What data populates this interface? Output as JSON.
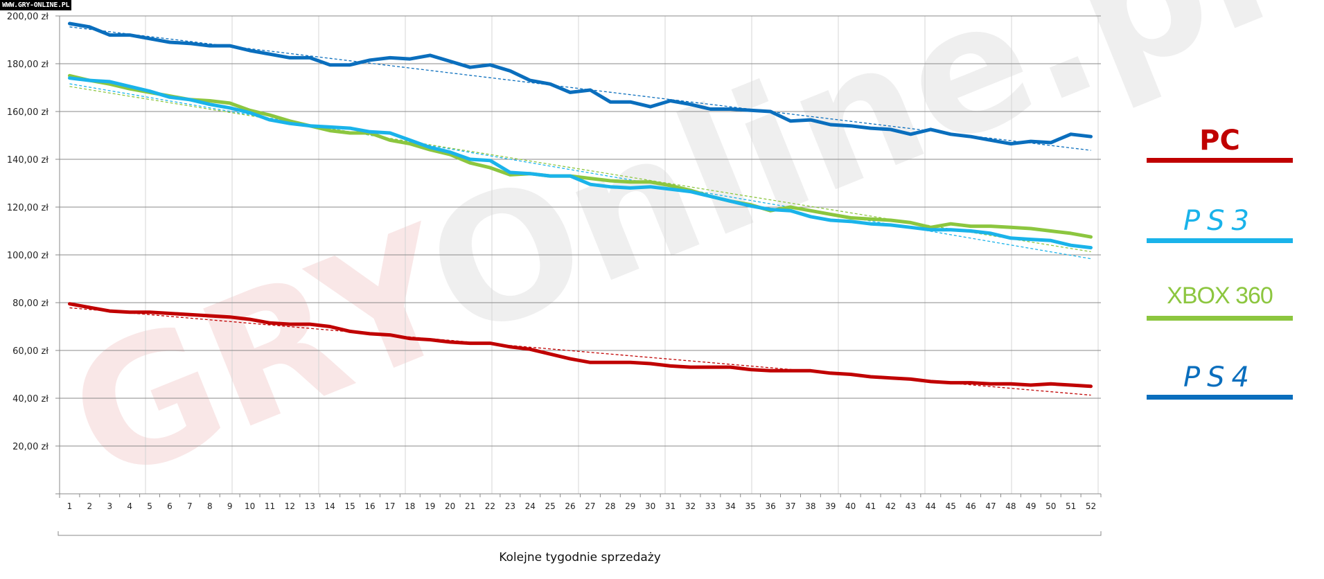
{
  "corner_label": "WWW.GRY-ONLINE.PL",
  "watermark": {
    "part1": "GRY",
    "part2": "Online.pl"
  },
  "chart_data": {
    "type": "line",
    "title": "",
    "xlabel": "Kolejne tygodnie sprzedaży",
    "ylabel": "",
    "ylim": [
      0,
      200
    ],
    "yticks": [
      20,
      40,
      60,
      80,
      100,
      120,
      140,
      160,
      180,
      200
    ],
    "ytick_labels": [
      "20,00 zł",
      "40,00 zł",
      "60,00 zł",
      "80,00 zł",
      "100,00 zł",
      "120,00 zł",
      "140,00 zł",
      "160,00 zł",
      "180,00 zł",
      "200,00 zł"
    ],
    "x": [
      1,
      2,
      3,
      4,
      5,
      6,
      7,
      8,
      9,
      10,
      11,
      12,
      13,
      14,
      15,
      16,
      17,
      18,
      19,
      20,
      21,
      22,
      23,
      24,
      25,
      26,
      27,
      28,
      29,
      30,
      31,
      32,
      33,
      34,
      35,
      36,
      37,
      38,
      39,
      40,
      41,
      42,
      43,
      44,
      45,
      46,
      47,
      48,
      49,
      50,
      51,
      52
    ],
    "grid": true,
    "trendlines": "linear, dashed",
    "legend_position": "right",
    "series": [
      {
        "name": "PS4",
        "color": "#0a6ebd",
        "values": [
          196.8,
          195.4,
          192,
          192,
          190.5,
          189,
          188.5,
          187.5,
          187.5,
          185.5,
          184,
          182.5,
          182.5,
          179.5,
          179.5,
          181.5,
          182.5,
          182,
          183.5,
          181,
          178.5,
          179.5,
          177,
          173,
          171.5,
          168,
          169,
          164,
          164,
          162,
          164.5,
          163,
          161,
          161,
          160.5,
          160,
          156,
          156.5,
          154.5,
          154,
          153,
          152.5,
          150.5,
          152.5,
          150.5,
          149.5,
          148,
          146.5,
          147.5,
          147,
          150.5,
          149.5
        ]
      },
      {
        "name": "PS3",
        "color": "#1ab3ea",
        "values": [
          174,
          173,
          172.5,
          170.5,
          168.5,
          166,
          165,
          163,
          161.5,
          159.5,
          156.5,
          155,
          154,
          153.5,
          153,
          151.5,
          151,
          148,
          145,
          143,
          140,
          139.5,
          134.5,
          134,
          133,
          133,
          129.5,
          128.5,
          128,
          128.5,
          127.5,
          126.5,
          124.5,
          122.5,
          120.5,
          119,
          118.5,
          116,
          114.5,
          114,
          113,
          112.5,
          111.5,
          110.5,
          110.5,
          110,
          109,
          107,
          106.5,
          106,
          104,
          103
        ]
      },
      {
        "name": "XBOX 360",
        "color": "#8cc63f",
        "values": [
          175,
          173,
          171.5,
          169.5,
          168,
          166.5,
          165,
          164.5,
          163.5,
          160.5,
          158.5,
          156,
          154,
          152,
          151,
          151,
          148,
          146.5,
          144,
          142,
          138.5,
          136.5,
          133.5,
          134,
          133,
          133,
          132,
          131,
          130.5,
          130.5,
          129,
          127,
          124.5,
          122.5,
          121,
          118.5,
          120,
          118.5,
          117,
          115.5,
          115,
          114.5,
          113.5,
          111.5,
          113,
          112,
          112,
          111.5,
          111,
          110,
          109,
          107.5
        ]
      },
      {
        "name": "PC",
        "color": "#c00000",
        "values": [
          79.5,
          78,
          76.5,
          76,
          76,
          75.5,
          75,
          74.5,
          74,
          73,
          71.5,
          71,
          71,
          70,
          68,
          67,
          66.5,
          65,
          64.5,
          63.5,
          63,
          63,
          61.5,
          60.5,
          58.5,
          56.5,
          55,
          55,
          55,
          54.5,
          53.5,
          53,
          53,
          53,
          52,
          51.5,
          51.5,
          51.5,
          50.5,
          50,
          49,
          48.5,
          48,
          47,
          46.5,
          46.5,
          46,
          46,
          45.5,
          46,
          45.5,
          45
        ]
      }
    ]
  },
  "legend": [
    {
      "label": "PC",
      "color": "#c00000"
    },
    {
      "label": "PS3",
      "color": "#1ab3ea"
    },
    {
      "label": "XBOX 360",
      "color": "#8cc63f"
    },
    {
      "label": "PS4",
      "color": "#0a6ebd"
    }
  ]
}
